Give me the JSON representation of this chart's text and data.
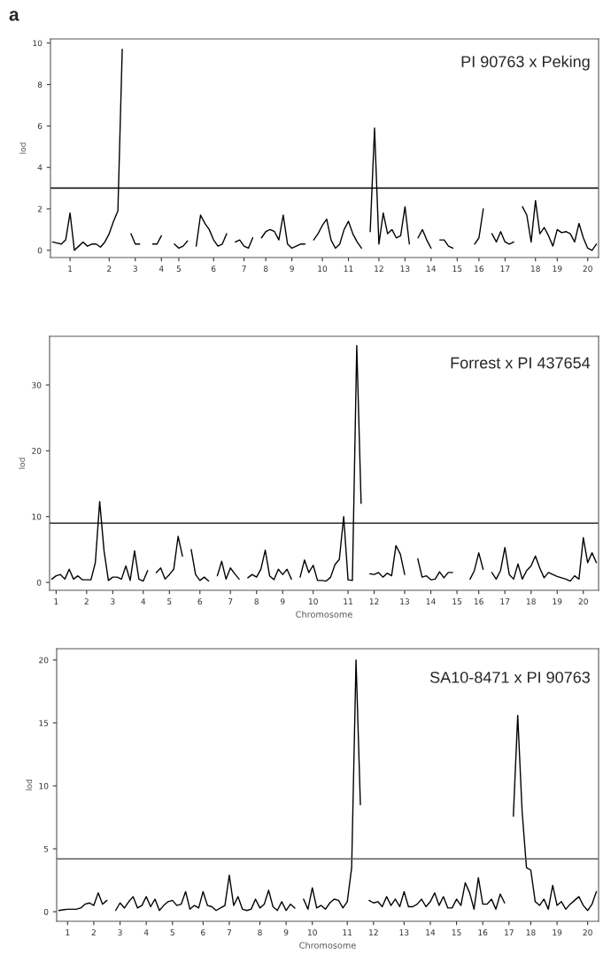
{
  "chart_data": [
    {
      "type": "line",
      "ylabel": "lod",
      "annotations": [
        "a",
        "PI 90763 x Peking"
      ],
      "ylim": [
        -0.35,
        10.2
      ],
      "yticks": [
        0,
        2,
        4,
        6,
        8,
        10
      ],
      "categories": [
        null,
        null,
        null,
        null,
        "1",
        null,
        null,
        null,
        null,
        null,
        null,
        null,
        null,
        "2",
        null,
        null,
        null,
        null,
        null,
        "3",
        null,
        null,
        null,
        null,
        null,
        "4",
        null,
        null,
        null,
        "5",
        null,
        null,
        null,
        null,
        null,
        null,
        null,
        "6",
        null,
        null,
        null,
        null,
        null,
        null,
        "7",
        null,
        null,
        null,
        null,
        "8",
        null,
        null,
        null,
        null,
        null,
        "9",
        null,
        null,
        null,
        null,
        null,
        null,
        "10",
        null,
        null,
        null,
        null,
        null,
        "11",
        null,
        null,
        null,
        null,
        null,
        null,
        "12",
        null,
        null,
        null,
        null,
        null,
        "13",
        null,
        null,
        null,
        null,
        null,
        "14",
        null,
        null,
        null,
        null,
        null,
        "15",
        null,
        null,
        null,
        null,
        "16",
        null,
        null,
        null,
        null,
        null,
        "17",
        null,
        null,
        null,
        null,
        null,
        null,
        "18",
        null,
        null,
        null,
        null,
        "19",
        null,
        null,
        null,
        null,
        null,
        null,
        "20",
        null,
        null
      ],
      "ref_lines": [
        {
          "axis": "y",
          "value": 3,
          "color": "#000000"
        }
      ],
      "series": [
        {
          "color": "#000000",
          "values": [
            0.4,
            0.35,
            0.3,
            0.5,
            1.8,
            0,
            0.2,
            0.4,
            0.2,
            0.3,
            0.3,
            0.15,
            0.4,
            0.8,
            1.4,
            1.9,
            9.7,
            null,
            0.8,
            0.3,
            0.3,
            null,
            null,
            0.3,
            0.3,
            0.7,
            null,
            null,
            0.3,
            0.1,
            0.2,
            0.45,
            null,
            0.2,
            1.7,
            1.3,
            1.0,
            0.5,
            0.2,
            0.3,
            0.8,
            null,
            0.4,
            0.5,
            0.2,
            0.1,
            0.6,
            null,
            0.6,
            0.9,
            1.0,
            0.9,
            0.5,
            1.7,
            0.3,
            0.1,
            0.2,
            0.3,
            0.3,
            null,
            0.5,
            0.8,
            1.2,
            1.5,
            0.5,
            0.1,
            0.3,
            1.0,
            1.4,
            0.8,
            0.4,
            0.1,
            null,
            0.9,
            5.9,
            0.3,
            1.8,
            0.8,
            1.0,
            0.6,
            0.7,
            2.1,
            0.3,
            null,
            0.6,
            1.0,
            0.5,
            0.1,
            null,
            0.5,
            0.5,
            0.2,
            0.1,
            null,
            null,
            null,
            null,
            0.3,
            0.6,
            2.0,
            null,
            0.8,
            0.4,
            0.9,
            0.4,
            0.3,
            0.4,
            null,
            2.1,
            1.7,
            0.4,
            2.4,
            0.8,
            1.1,
            0.7,
            0.2,
            1.0,
            0.85,
            0.9,
            0.8,
            0.4,
            1.3,
            0.6,
            0.1,
            0,
            0.3
          ]
        }
      ]
    },
    {
      "type": "line",
      "ylabel": "lod",
      "xlabel": "Chromosome",
      "annotations": [
        "Forrest x PI 437654"
      ],
      "ylim": [
        -1.2,
        37.4
      ],
      "yticks": [
        0,
        10,
        20,
        30
      ],
      "categories": [
        null,
        "1",
        null,
        null,
        null,
        null,
        null,
        null,
        "2",
        null,
        null,
        null,
        null,
        null,
        "3",
        null,
        null,
        null,
        null,
        null,
        null,
        "4",
        null,
        null,
        null,
        null,
        null,
        "5",
        null,
        null,
        null,
        null,
        null,
        null,
        "6",
        null,
        null,
        null,
        null,
        null,
        null,
        "7",
        null,
        null,
        null,
        null,
        null,
        "8",
        null,
        null,
        null,
        null,
        null,
        "9",
        null,
        null,
        null,
        null,
        null,
        null,
        "10",
        null,
        null,
        null,
        null,
        null,
        null,
        null,
        "11",
        null,
        null,
        null,
        null,
        null,
        "12",
        null,
        null,
        null,
        null,
        null,
        null,
        "13",
        null,
        null,
        null,
        null,
        null,
        "14",
        null,
        null,
        null,
        null,
        null,
        "15",
        null,
        null,
        null,
        null,
        "16",
        null,
        null,
        null,
        null,
        null,
        "17",
        null,
        null,
        null,
        null,
        null,
        "18",
        null,
        null,
        null,
        null,
        null,
        "19",
        null,
        null,
        null,
        null,
        null,
        "20",
        null,
        null,
        null
      ],
      "ref_lines": [
        {
          "axis": "y",
          "value": 9,
          "color": "#000000"
        }
      ],
      "series": [
        {
          "color": "#000000",
          "values": [
            0.5,
            1.0,
            1.2,
            0.5,
            2.0,
            0.5,
            1.0,
            0.4,
            0.4,
            0.4,
            3.0,
            12.3,
            4.8,
            0.3,
            0.8,
            0.8,
            0.5,
            2.5,
            0.3,
            4.8,
            0.5,
            0.2,
            1.8,
            null,
            1.5,
            2.2,
            0.5,
            1.2,
            2.0,
            7.0,
            4.0,
            null,
            5.0,
            1.2,
            0.3,
            0.8,
            0.2,
            null,
            1.0,
            3.2,
            0.5,
            2.2,
            1.3,
            0.5,
            null,
            0.7,
            1.2,
            0.8,
            2.0,
            4.9,
            1.0,
            0.4,
            2.0,
            1.2,
            2.0,
            0.5,
            null,
            0.8,
            3.4,
            1.5,
            2.6,
            0.3,
            0.3,
            0.2,
            0.8,
            2.7,
            3.5,
            10,
            0.4,
            0.3,
            36,
            12,
            null,
            1.3,
            1.2,
            1.5,
            0.8,
            1.4,
            1.0,
            5.6,
            4.3,
            1.2,
            null,
            null,
            3.6,
            0.8,
            1.0,
            0.4,
            0.5,
            1.6,
            0.7,
            1.5,
            1.5,
            null,
            null,
            null,
            0.5,
            1.8,
            4.5,
            2.0,
            null,
            1.5,
            0.5,
            1.8,
            5.3,
            1.2,
            0.5,
            2.8,
            0.5,
            1.8,
            2.5,
            4.0,
            2.2,
            0.7,
            1.5,
            1.2,
            0.9,
            0.7,
            0.5,
            0.2,
            1.0,
            0.5,
            6.8,
            3.0,
            4.5,
            3.0
          ]
        }
      ]
    },
    {
      "type": "line",
      "ylabel": "lod",
      "xlabel": "Chromosome",
      "annotations": [
        "SA10-8471 x PI 90763"
      ],
      "ylim": [
        -0.76,
        20.9
      ],
      "yticks": [
        0,
        5,
        10,
        15,
        20
      ],
      "categories": [
        null,
        null,
        "1",
        null,
        null,
        null,
        null,
        null,
        "2",
        null,
        null,
        null,
        null,
        null,
        "3",
        null,
        null,
        null,
        null,
        null,
        "4",
        null,
        null,
        null,
        null,
        null,
        "5",
        null,
        null,
        null,
        null,
        null,
        null,
        "6",
        null,
        null,
        null,
        null,
        null,
        "7",
        null,
        null,
        null,
        null,
        null,
        null,
        "8",
        null,
        null,
        null,
        null,
        null,
        "9",
        null,
        null,
        null,
        null,
        null,
        "10",
        null,
        null,
        null,
        null,
        null,
        null,
        null,
        "11",
        null,
        null,
        null,
        null,
        null,
        "12",
        null,
        null,
        null,
        null,
        null,
        null,
        "13",
        null,
        null,
        null,
        null,
        null,
        "14",
        null,
        null,
        null,
        null,
        null,
        "15",
        null,
        null,
        null,
        null,
        null,
        "16",
        null,
        null,
        null,
        null,
        null,
        "17",
        null,
        null,
        null,
        null,
        "18",
        null,
        null,
        null,
        null,
        null,
        "19",
        null,
        null,
        null,
        null,
        null,
        null,
        "20",
        null,
        null
      ],
      "ref_lines": [
        {
          "axis": "y",
          "value": 4.2,
          "color": "#555555"
        }
      ],
      "series": [
        {
          "color": "#000000",
          "values": [
            0.1,
            0.15,
            0.2,
            0.2,
            0.2,
            0.3,
            0.6,
            0.7,
            0.5,
            1.5,
            0.6,
            0.9,
            null,
            0.1,
            0.7,
            0.3,
            0.8,
            1.2,
            0.3,
            0.5,
            1.2,
            0.4,
            1.0,
            0.1,
            0.5,
            0.8,
            0.9,
            0.5,
            0.6,
            1.6,
            0.2,
            0.5,
            0.3,
            1.6,
            0.5,
            0.4,
            0.1,
            0.3,
            0.5,
            2.9,
            0.5,
            1.2,
            0.2,
            0.1,
            0.2,
            1.0,
            0.3,
            0.6,
            1.7,
            0.4,
            0.1,
            0.8,
            0.1,
            0.6,
            0.3,
            null,
            1.0,
            0.2,
            1.9,
            0.3,
            0.5,
            0.2,
            0.7,
            1.0,
            0.9,
            0.3,
            0.8,
            3.5,
            20,
            8.5,
            null,
            0.9,
            0.7,
            0.8,
            0.4,
            1.2,
            0.5,
            1.0,
            0.4,
            1.6,
            0.4,
            0.4,
            0.6,
            1.0,
            0.4,
            0.8,
            1.5,
            0.5,
            1.2,
            0.3,
            0.3,
            1.0,
            0.5,
            2.3,
            1.5,
            0.2,
            2.7,
            0.6,
            0.6,
            1.0,
            0.2,
            1.4,
            0.7,
            null,
            7.6,
            15.6,
            8.0,
            3.5,
            3.3,
            0.8,
            0.5,
            1.0,
            0.2,
            2.1,
            0.5,
            0.8,
            0.2,
            0.6,
            0.9,
            1.2,
            0.5,
            0.1,
            0.6,
            1.6
          ]
        }
      ]
    }
  ]
}
